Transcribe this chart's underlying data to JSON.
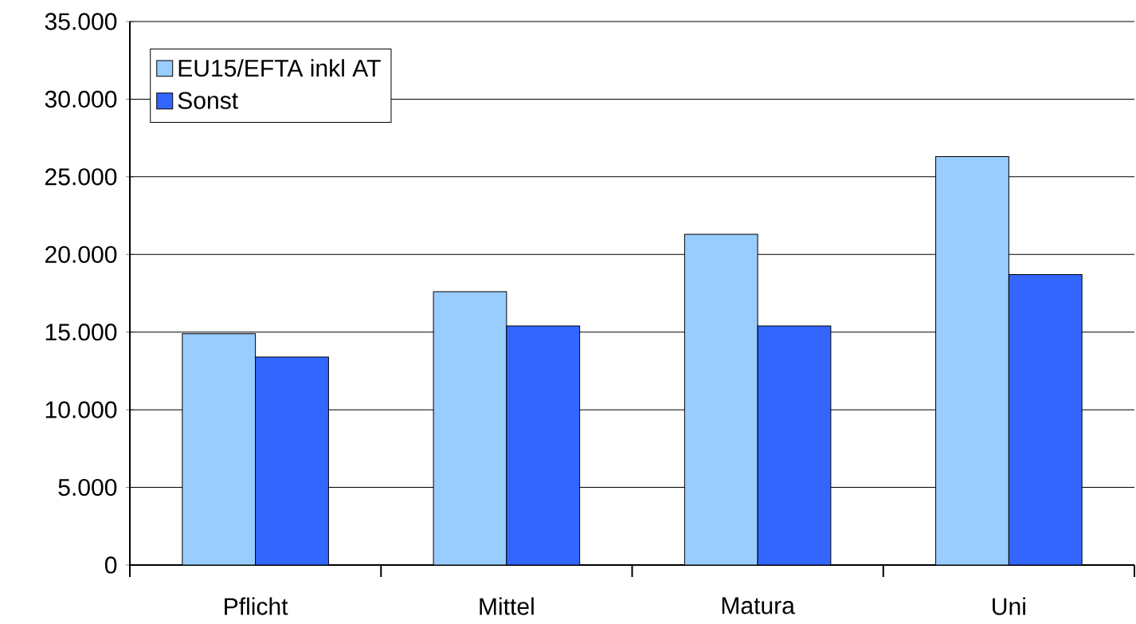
{
  "chart_data": {
    "type": "bar",
    "categories": [
      "Pflicht",
      "Mittel",
      "Matura",
      "Uni"
    ],
    "series": [
      {
        "name": "EU15/EFTA inkl AT",
        "color": "#99ccff",
        "values": [
          14900,
          17600,
          21300,
          26300
        ]
      },
      {
        "name": "Sonst",
        "color": "#3366ff",
        "values": [
          13400,
          15400,
          15400,
          18700
        ]
      }
    ],
    "ylim": [
      0,
      35000
    ],
    "yticks": [
      0,
      {
        "value": 5000,
        "label": "5.000"
      },
      {
        "value": 10000,
        "label": "10.000"
      },
      {
        "value": 15000,
        "label": "15.000"
      },
      {
        "value": 20000,
        "label": "20.000"
      },
      {
        "value": 25000,
        "label": "25.000"
      },
      {
        "value": 30000,
        "label": "30.000"
      },
      {
        "value": 35000,
        "label": "35.000"
      }
    ],
    "grid": "y",
    "legend": "top left"
  }
}
